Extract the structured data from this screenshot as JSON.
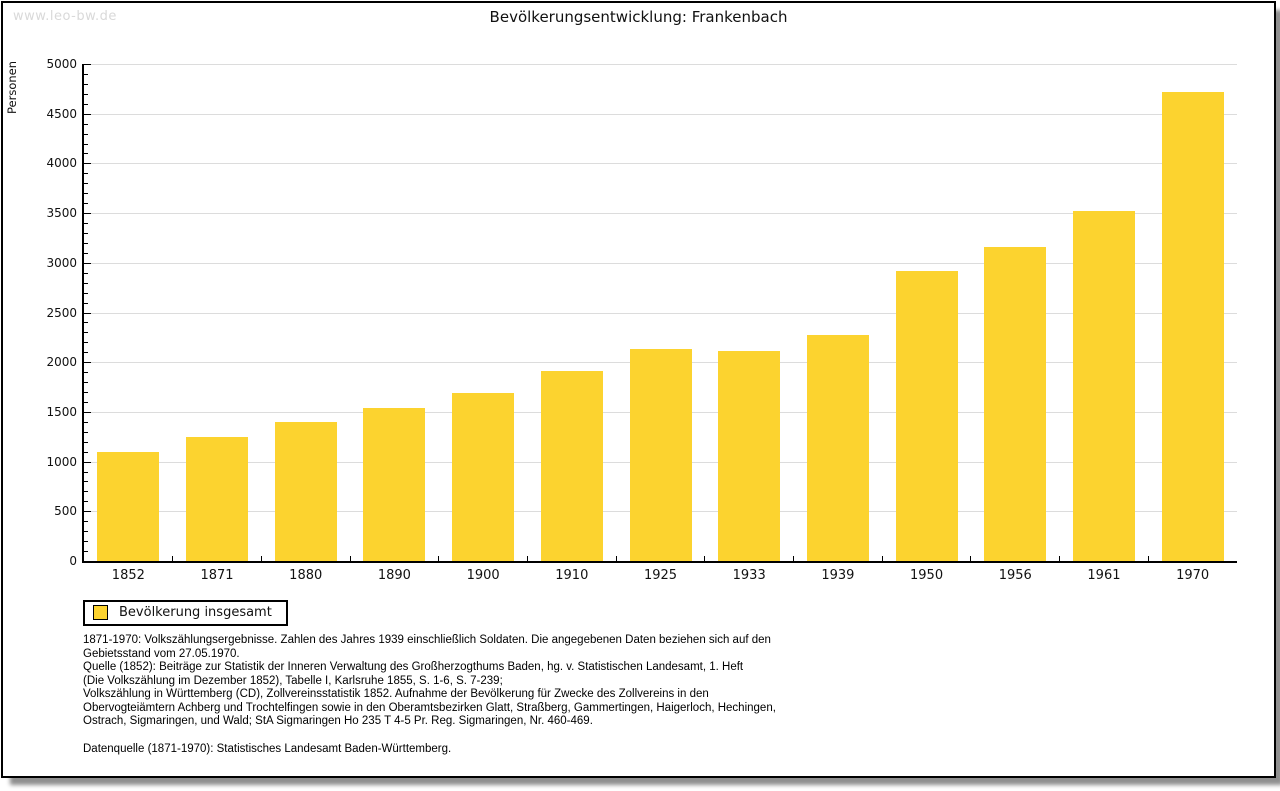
{
  "page": {
    "watermark": "www.leo-bw.de"
  },
  "header": {
    "title": "Bevölkerungsentwicklung: Frankenbach"
  },
  "chart_data": {
    "type": "bar",
    "title": "Bevölkerungsentwicklung: Frankenbach",
    "xlabel": "",
    "ylabel": "Personen",
    "ylim": [
      0,
      5000
    ],
    "ytick_step": 500,
    "minor_tick_step": 100,
    "grid": true,
    "grid_color": "#dcdcdc",
    "bar_color": "#fcd32f",
    "legend_position": "bottom-left",
    "series_name": "Bevölkerung insgesamt",
    "categories": [
      "1852",
      "1871",
      "1880",
      "1890",
      "1900",
      "1910",
      "1925",
      "1933",
      "1939",
      "1950",
      "1956",
      "1961",
      "1970"
    ],
    "values": [
      1100,
      1250,
      1400,
      1535,
      1695,
      1915,
      2135,
      2110,
      2270,
      2920,
      3160,
      3520,
      4715
    ]
  },
  "legend": {
    "label": "Bevölkerung insgesamt",
    "swatch_color": "#fcd32f"
  },
  "footnotes": {
    "lines": [
      "1871-1970: Volkszählungsergebnisse. Zahlen des Jahres 1939 einschließlich Soldaten. Die angegebenen Daten beziehen sich auf den",
      "Gebietsstand vom 27.05.1970.",
      "Quelle (1852): Beiträge zur Statistik der Inneren Verwaltung des Großherzogthums Baden, hg. v. Statistischen Landesamt, 1. Heft",
      "(Die Volkszählung im Dezember 1852), Tabelle I, Karlsruhe 1855, S. 1-6, S. 7-239;",
      "Volkszählung in Württemberg (CD), Zollvereinsstatistik 1852. Aufnahme der Bevölkerung für Zwecke des Zollvereins in den",
      "Obervogteiämtern Achberg und Trochtelfingen sowie in den Oberamtsbezirken Glatt, Straßberg, Gammertingen, Haigerloch, Hechingen,",
      "Ostrach, Sigmaringen, und Wald; StA Sigmaringen Ho 235 T 4-5 Pr. Reg. Sigmaringen, Nr. 460-469."
    ],
    "datasource": "Datenquelle (1871-1970): Statistisches Landesamt Baden-Württemberg."
  }
}
